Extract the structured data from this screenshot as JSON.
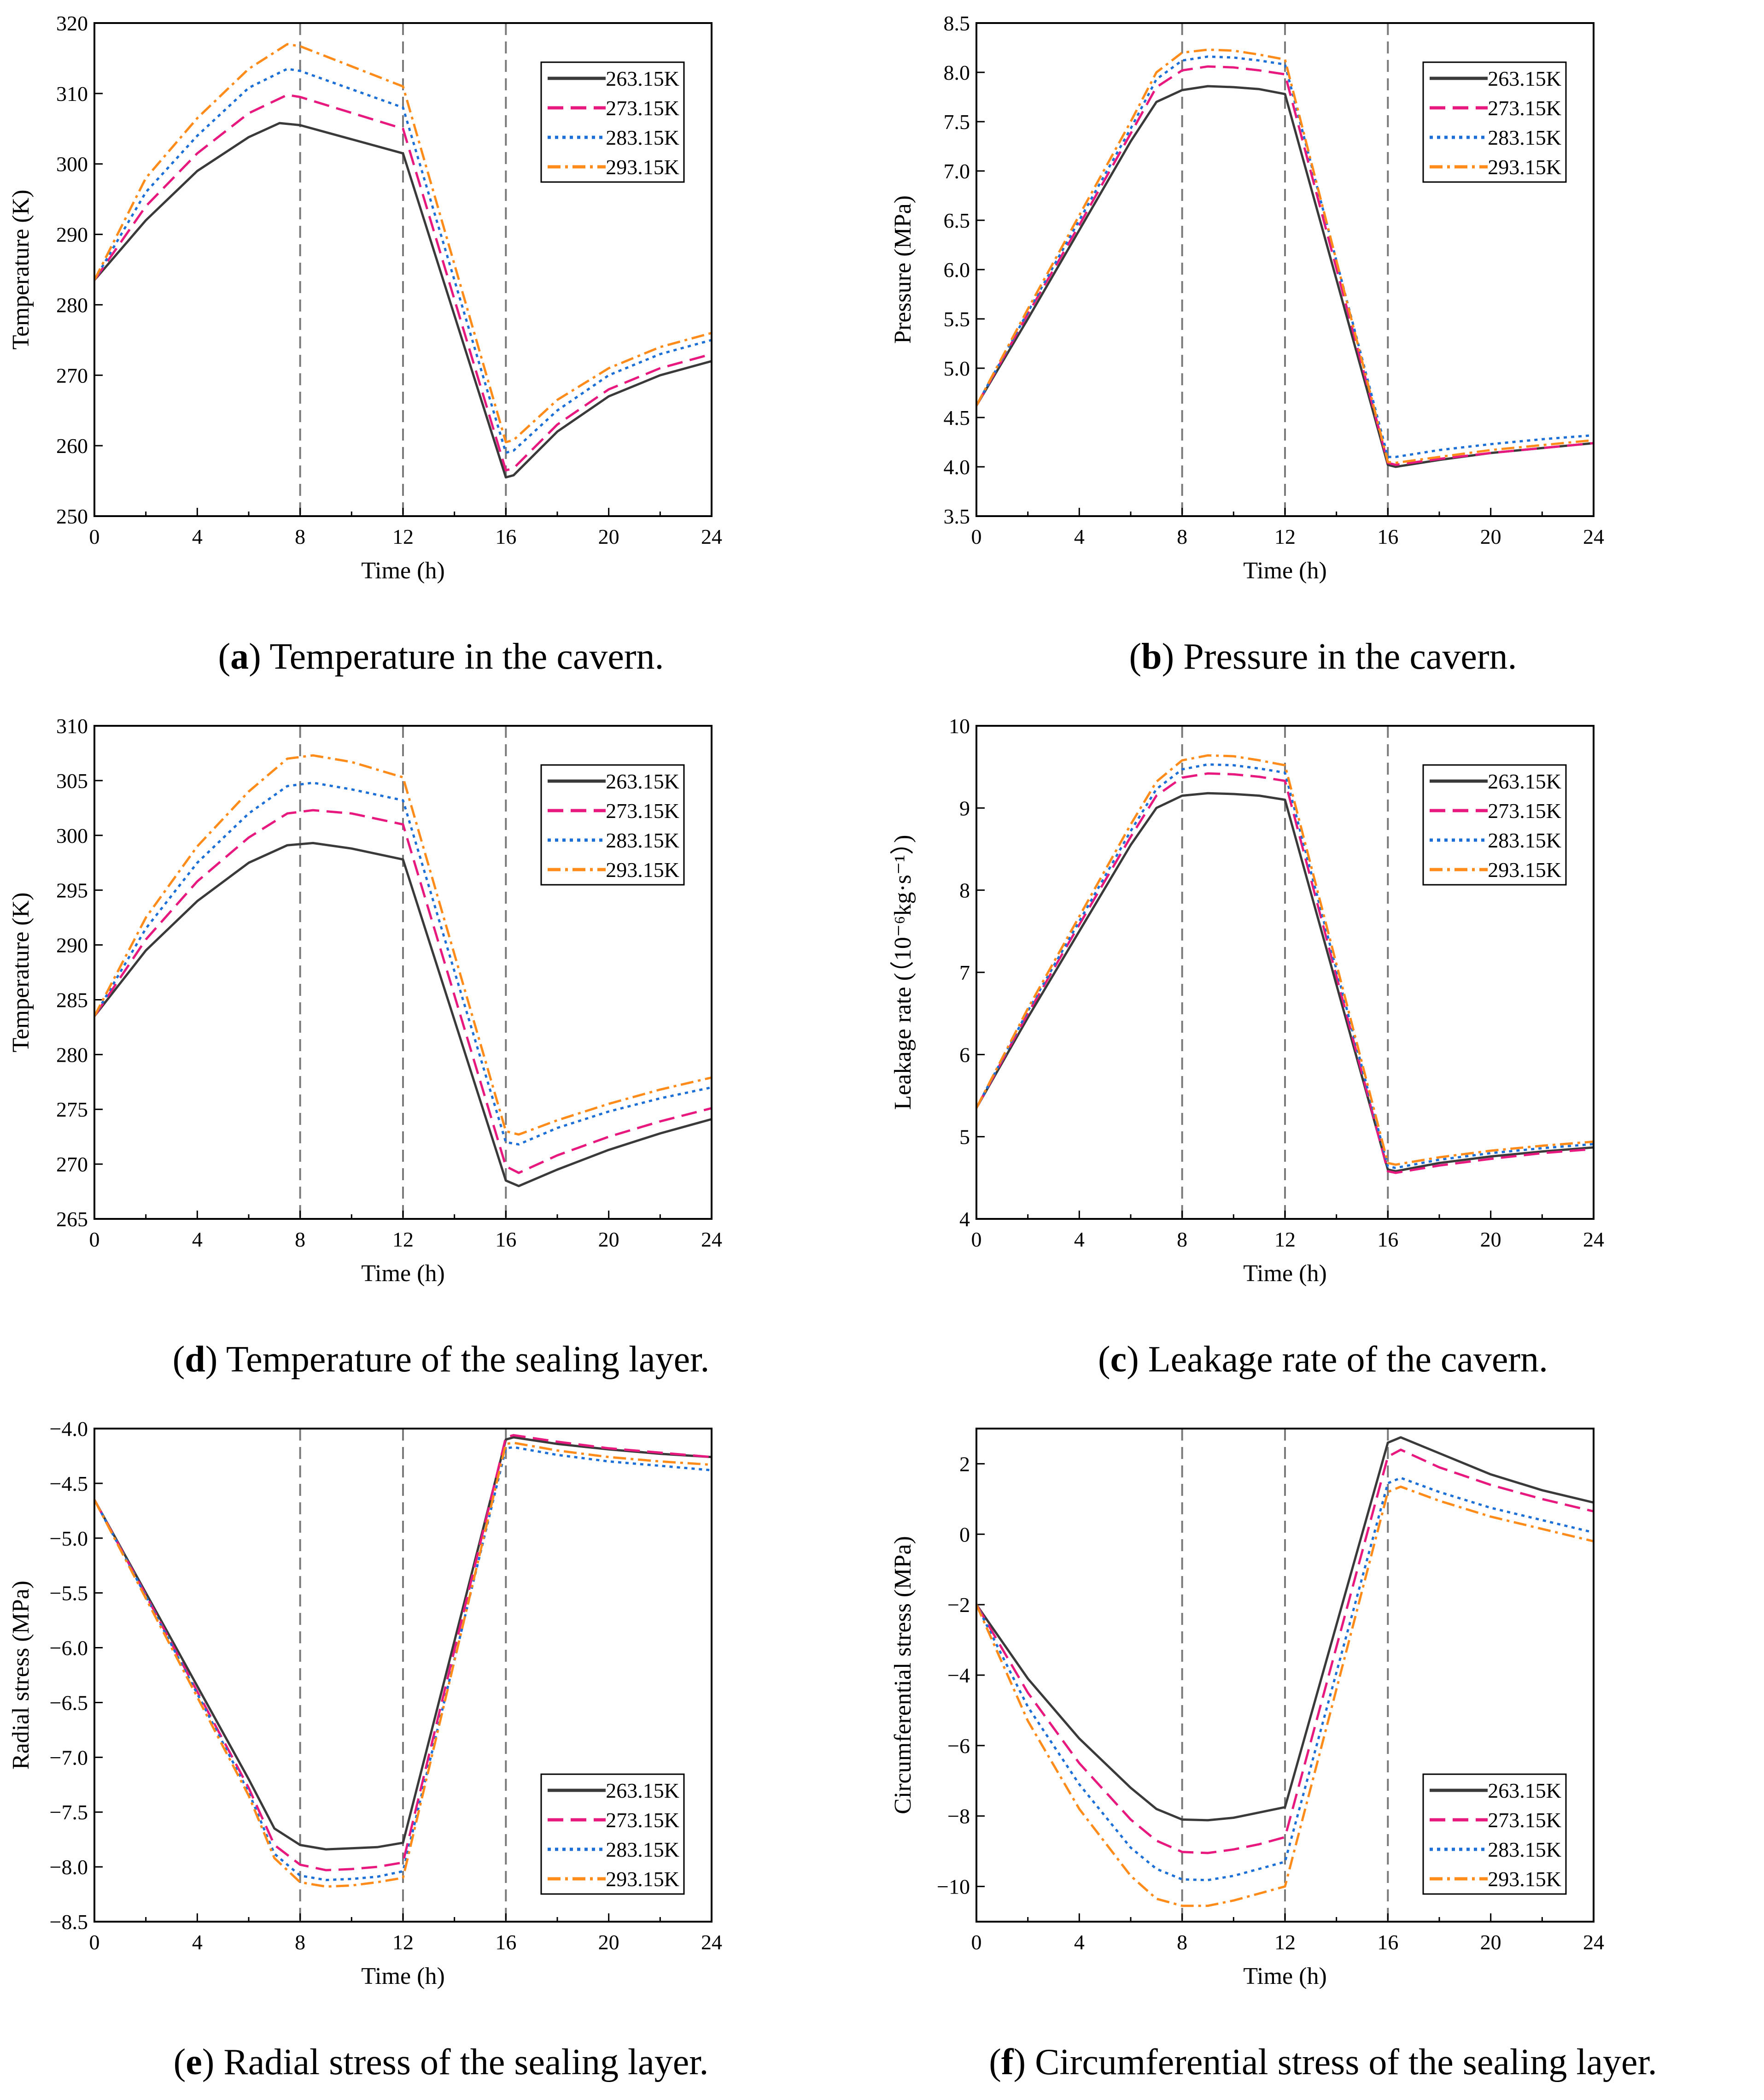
{
  "colors": {
    "263.15K": "#3a3a3a",
    "273.15K": "#e8197e",
    "283.15K": "#1b6fd6",
    "293.15K": "#ff8c1a",
    "vline": "#7a7a7a"
  },
  "legend_labels": [
    "263.15K",
    "273.15K",
    "283.15K",
    "293.15K"
  ],
  "captions": [
    {
      "letter": "a",
      "text": ") Temperature in the cavern.",
      "open": "("
    },
    {
      "letter": "b",
      "text": ") Pressure in the cavern.",
      "open": "("
    },
    {
      "letter": "d",
      "text": ") Temperature of the sealing layer.",
      "open": "("
    },
    {
      "letter": "c",
      "text": ") Leakage rate of the cavern.",
      "open": "("
    },
    {
      "letter": "e",
      "text": ") Radial stress of the sealing layer.",
      "open": "("
    },
    {
      "letter": "f",
      "text": ") Circumferential stress of the sealing layer.",
      "open": "("
    }
  ],
  "chart_data": [
    {
      "id": "a",
      "type": "line",
      "title": "Temperature in the cavern.",
      "xlabel": "Time (h)",
      "ylabel": "Temperature (K)",
      "xlim": [
        0,
        24
      ],
      "ylim": [
        250,
        320
      ],
      "xticks": [
        0,
        4,
        8,
        12,
        16,
        20,
        24
      ],
      "yticks": [
        250,
        260,
        270,
        280,
        290,
        300,
        310,
        320
      ],
      "vlines": [
        8,
        12,
        16
      ],
      "legend": "top-right",
      "series": [
        {
          "name": "263.15K",
          "x": [
            0,
            2,
            4,
            6,
            7.2,
            8,
            12,
            16,
            16.3,
            18,
            20,
            22,
            24
          ],
          "y": [
            283.5,
            292,
            299,
            303.8,
            305.8,
            305.5,
            301.5,
            255.5,
            255.8,
            262,
            267,
            270,
            272
          ]
        },
        {
          "name": "273.15K",
          "x": [
            0,
            2,
            4,
            6,
            7.5,
            8,
            12,
            16,
            16.3,
            18,
            20,
            22,
            24
          ],
          "y": [
            283.5,
            294,
            301.5,
            307.2,
            309.8,
            309.5,
            305,
            256.5,
            256.8,
            263,
            268,
            271,
            273
          ]
        },
        {
          "name": "283.15K",
          "x": [
            0,
            2,
            4,
            6,
            7.5,
            8,
            12,
            16,
            16.3,
            18,
            20,
            22,
            24
          ],
          "y": [
            283.5,
            296,
            304,
            310.8,
            313.5,
            313.2,
            308,
            259,
            259.3,
            265,
            270,
            273,
            275
          ]
        },
        {
          "name": "293.15K",
          "x": [
            0,
            2,
            4,
            6,
            7.5,
            8,
            12,
            16,
            16.3,
            18,
            20,
            22,
            24
          ],
          "y": [
            283.5,
            298,
            306.5,
            313.5,
            317,
            316.7,
            311,
            260.5,
            260.8,
            266.5,
            271,
            274,
            276
          ]
        }
      ]
    },
    {
      "id": "b",
      "type": "line",
      "title": "Pressure in the cavern.",
      "xlabel": "Time (h)",
      "ylabel": "Pressure (MPa)",
      "xlim": [
        0,
        24
      ],
      "ylim": [
        3.5,
        8.5
      ],
      "xticks": [
        0,
        4,
        8,
        12,
        16,
        20,
        24
      ],
      "yticks": [
        3.5,
        4.0,
        4.5,
        5.0,
        5.5,
        6.0,
        6.5,
        7.0,
        7.5,
        8.0,
        8.5
      ],
      "vlines": [
        8,
        12,
        16
      ],
      "legend": "top-right",
      "series": [
        {
          "name": "263.15K",
          "x": [
            0,
            2,
            4,
            6,
            7,
            8,
            9,
            10,
            11,
            12,
            16,
            16.3,
            18,
            20,
            22,
            24
          ],
          "y": [
            4.62,
            5.5,
            6.4,
            7.3,
            7.7,
            7.82,
            7.86,
            7.85,
            7.83,
            7.78,
            4.02,
            4.0,
            4.07,
            4.14,
            4.19,
            4.24
          ]
        },
        {
          "name": "273.15K",
          "x": [
            0,
            2,
            4,
            6,
            7,
            8,
            9,
            10,
            11,
            12,
            16,
            16.3,
            18,
            20,
            22,
            24
          ],
          "y": [
            4.62,
            5.55,
            6.45,
            7.38,
            7.85,
            8.02,
            8.06,
            8.05,
            8.02,
            7.98,
            4.04,
            4.02,
            4.08,
            4.14,
            4.19,
            4.24
          ]
        },
        {
          "name": "283.15K",
          "x": [
            0,
            2,
            4,
            6,
            7,
            8,
            9,
            10,
            11,
            12,
            16,
            16.3,
            18,
            20,
            22,
            24
          ],
          "y": [
            4.62,
            5.57,
            6.5,
            7.43,
            7.93,
            8.12,
            8.16,
            8.15,
            8.12,
            8.08,
            4.1,
            4.1,
            4.17,
            4.23,
            4.28,
            4.32
          ]
        },
        {
          "name": "293.15K",
          "x": [
            0,
            2,
            4,
            6,
            7,
            8,
            9,
            10,
            11,
            12,
            16,
            16.3,
            18,
            20,
            22,
            24
          ],
          "y": [
            4.62,
            5.6,
            6.55,
            7.5,
            8.0,
            8.2,
            8.23,
            8.22,
            8.18,
            8.13,
            4.05,
            4.04,
            4.1,
            4.17,
            4.22,
            4.27
          ]
        }
      ]
    },
    {
      "id": "d",
      "type": "line",
      "title": "Temperature of the sealing layer.",
      "xlabel": "Time (h)",
      "ylabel": "Temperature (K)",
      "xlim": [
        0,
        24
      ],
      "ylim": [
        265,
        310
      ],
      "xticks": [
        0,
        4,
        8,
        12,
        16,
        20,
        24
      ],
      "yticks": [
        265,
        270,
        275,
        280,
        285,
        290,
        295,
        300,
        305,
        310
      ],
      "vlines": [
        8,
        12,
        16
      ],
      "legend": "top-right",
      "series": [
        {
          "name": "263.15K",
          "x": [
            0,
            2,
            4,
            6,
            7.5,
            8.5,
            10,
            12,
            16,
            16.5,
            18,
            20,
            22,
            24
          ],
          "y": [
            283.5,
            289.5,
            294,
            297.5,
            299.1,
            299.3,
            298.8,
            297.8,
            268.5,
            268,
            269.5,
            271.3,
            272.8,
            274.1
          ]
        },
        {
          "name": "273.15K",
          "x": [
            0,
            2,
            4,
            6,
            7.5,
            8.5,
            10,
            12,
            16,
            16.5,
            18,
            20,
            22,
            24
          ],
          "y": [
            283.5,
            290.5,
            295.8,
            299.8,
            302,
            302.3,
            302,
            301,
            269.8,
            269.2,
            270.8,
            272.5,
            273.9,
            275.1
          ]
        },
        {
          "name": "283.15K",
          "x": [
            0,
            2,
            4,
            6,
            7.5,
            8.5,
            10,
            12,
            16,
            16.5,
            18,
            20,
            22,
            24
          ],
          "y": [
            283.5,
            291.5,
            297.5,
            302,
            304.5,
            304.8,
            304.2,
            303.2,
            272,
            271.8,
            273.3,
            274.8,
            276,
            277
          ]
        },
        {
          "name": "293.15K",
          "x": [
            0,
            2,
            4,
            6,
            7.5,
            8.5,
            10,
            12,
            16,
            16.5,
            18,
            20,
            22,
            24
          ],
          "y": [
            283.5,
            292.5,
            299,
            304,
            307,
            307.3,
            306.7,
            305.3,
            273,
            272.7,
            274,
            275.5,
            276.8,
            277.9
          ]
        }
      ]
    },
    {
      "id": "c",
      "type": "line",
      "title": "Leakage rate of the cavern.",
      "xlabel": "Time (h)",
      "ylabel": "Leakage rate (（10⁻⁶kg·s⁻¹）)",
      "xlim": [
        0,
        24
      ],
      "ylim": [
        4,
        10
      ],
      "xticks": [
        0,
        4,
        8,
        12,
        16,
        20,
        24
      ],
      "yticks": [
        4,
        5,
        6,
        7,
        8,
        9,
        10
      ],
      "vlines": [
        8,
        12,
        16
      ],
      "legend": "top-right",
      "series": [
        {
          "name": "263.15K",
          "x": [
            0,
            2,
            4,
            6,
            7,
            8,
            9,
            10,
            11,
            12,
            16,
            16.3,
            18,
            20,
            22,
            24
          ],
          "y": [
            5.35,
            6.45,
            7.5,
            8.55,
            9.0,
            9.15,
            9.18,
            9.17,
            9.15,
            9.1,
            4.6,
            4.58,
            4.68,
            4.76,
            4.82,
            4.87
          ]
        },
        {
          "name": "273.15K",
          "x": [
            0,
            2,
            4,
            6,
            7,
            8,
            9,
            10,
            11,
            12,
            16,
            16.3,
            18,
            20,
            22,
            24
          ],
          "y": [
            5.35,
            6.5,
            7.58,
            8.65,
            9.15,
            9.37,
            9.42,
            9.41,
            9.38,
            9.33,
            4.58,
            4.56,
            4.65,
            4.73,
            4.8,
            4.85
          ]
        },
        {
          "name": "283.15K",
          "x": [
            0,
            2,
            4,
            6,
            7,
            8,
            9,
            10,
            11,
            12,
            16,
            16.3,
            18,
            20,
            22,
            24
          ],
          "y": [
            5.35,
            6.53,
            7.62,
            8.72,
            9.23,
            9.47,
            9.53,
            9.52,
            9.48,
            9.43,
            4.64,
            4.62,
            4.72,
            4.8,
            4.86,
            4.91
          ]
        },
        {
          "name": "293.15K",
          "x": [
            0,
            2,
            4,
            6,
            7,
            8,
            9,
            10,
            11,
            12,
            16,
            16.3,
            18,
            20,
            22,
            24
          ],
          "y": [
            5.35,
            6.56,
            7.68,
            8.8,
            9.32,
            9.58,
            9.64,
            9.63,
            9.58,
            9.52,
            4.68,
            4.66,
            4.75,
            4.83,
            4.89,
            4.94
          ]
        }
      ]
    },
    {
      "id": "e",
      "type": "line",
      "title": "Radial stress of the sealing layer.",
      "xlabel": "Time (h)",
      "ylabel": "Radial stress (MPa)",
      "xlim": [
        0,
        24
      ],
      "ylim": [
        -8.5,
        -4.0
      ],
      "xticks": [
        0,
        4,
        8,
        12,
        16,
        20,
        24
      ],
      "yticks": [
        -8.5,
        -8.0,
        -7.5,
        -7.0,
        -6.5,
        -6.0,
        -5.5,
        -5.0,
        -4.5,
        -4.0
      ],
      "vlines": [
        8,
        12,
        16
      ],
      "legend": "bottom-right",
      "series": [
        {
          "name": "263.15K",
          "x": [
            0,
            2,
            4,
            6,
            7,
            8,
            9,
            10,
            11,
            12,
            16,
            16.3,
            18,
            20,
            22,
            24
          ],
          "y": [
            -4.65,
            -5.5,
            -6.35,
            -7.2,
            -7.65,
            -7.8,
            -7.84,
            -7.83,
            -7.82,
            -7.78,
            -4.1,
            -4.08,
            -4.14,
            -4.19,
            -4.23,
            -4.26
          ]
        },
        {
          "name": "273.15K",
          "x": [
            0,
            2,
            4,
            6,
            7,
            8,
            9,
            10,
            11,
            12,
            16,
            16.3,
            18,
            20,
            22,
            24
          ],
          "y": [
            -4.65,
            -5.52,
            -6.4,
            -7.28,
            -7.8,
            -7.98,
            -8.03,
            -8.02,
            -8.0,
            -7.96,
            -4.08,
            -4.06,
            -4.12,
            -4.18,
            -4.22,
            -4.26
          ]
        },
        {
          "name": "283.15K",
          "x": [
            0,
            2,
            4,
            6,
            7,
            8,
            9,
            10,
            11,
            12,
            16,
            16.3,
            18,
            20,
            22,
            24
          ],
          "y": [
            -4.65,
            -5.53,
            -6.42,
            -7.32,
            -7.88,
            -8.08,
            -8.12,
            -8.11,
            -8.09,
            -8.04,
            -4.18,
            -4.17,
            -4.24,
            -4.3,
            -4.34,
            -4.38
          ]
        },
        {
          "name": "293.15K",
          "x": [
            0,
            2,
            4,
            6,
            7,
            8,
            9,
            10,
            11,
            12,
            16,
            16.3,
            18,
            20,
            22,
            24
          ],
          "y": [
            -4.65,
            -5.55,
            -6.45,
            -7.35,
            -7.92,
            -8.14,
            -8.18,
            -8.17,
            -8.14,
            -8.1,
            -4.14,
            -4.13,
            -4.2,
            -4.26,
            -4.3,
            -4.33
          ]
        }
      ]
    },
    {
      "id": "f",
      "type": "line",
      "title": "Circumferential stress of the sealing layer.",
      "xlabel": "Time (h)",
      "ylabel": "Circumferential stress (MPa)",
      "xlim": [
        0,
        24
      ],
      "ylim": [
        -11,
        3
      ],
      "xticks": [
        0,
        4,
        8,
        12,
        16,
        20,
        24
      ],
      "yticks": [
        -10,
        -8,
        -6,
        -4,
        -2,
        0,
        2
      ],
      "vlines": [
        8,
        12,
        16
      ],
      "legend": "bottom-right",
      "series": [
        {
          "name": "263.15K",
          "x": [
            0,
            2,
            4,
            6,
            7,
            8,
            9,
            10,
            11,
            12,
            16,
            16.5,
            18,
            20,
            22,
            24
          ],
          "y": [
            -2,
            -4.1,
            -5.8,
            -7.2,
            -7.8,
            -8.1,
            -8.12,
            -8.05,
            -7.9,
            -7.75,
            2.6,
            2.75,
            2.3,
            1.7,
            1.25,
            0.9
          ]
        },
        {
          "name": "273.15K",
          "x": [
            0,
            2,
            4,
            6,
            7,
            8,
            9,
            10,
            11,
            12,
            16,
            16.5,
            18,
            20,
            22,
            24
          ],
          "y": [
            -2,
            -4.5,
            -6.5,
            -8.1,
            -8.7,
            -9.02,
            -9.05,
            -8.95,
            -8.8,
            -8.6,
            2.2,
            2.4,
            1.9,
            1.4,
            1.0,
            0.65
          ]
        },
        {
          "name": "283.15K",
          "x": [
            0,
            2,
            4,
            6,
            7,
            8,
            9,
            10,
            11,
            12,
            16,
            16.5,
            18,
            20,
            22,
            24
          ],
          "y": [
            -2,
            -4.9,
            -7.1,
            -8.9,
            -9.5,
            -9.8,
            -9.82,
            -9.7,
            -9.5,
            -9.3,
            1.45,
            1.6,
            1.2,
            0.75,
            0.4,
            0.05
          ]
        },
        {
          "name": "293.15K",
          "x": [
            0,
            2,
            4,
            6,
            7,
            8,
            9,
            10,
            11,
            12,
            16,
            16.5,
            18,
            20,
            22,
            24
          ],
          "y": [
            -2,
            -5.3,
            -7.8,
            -9.7,
            -10.35,
            -10.55,
            -10.55,
            -10.4,
            -10.2,
            -10.0,
            1.2,
            1.35,
            0.95,
            0.5,
            0.15,
            -0.2
          ]
        }
      ]
    }
  ]
}
